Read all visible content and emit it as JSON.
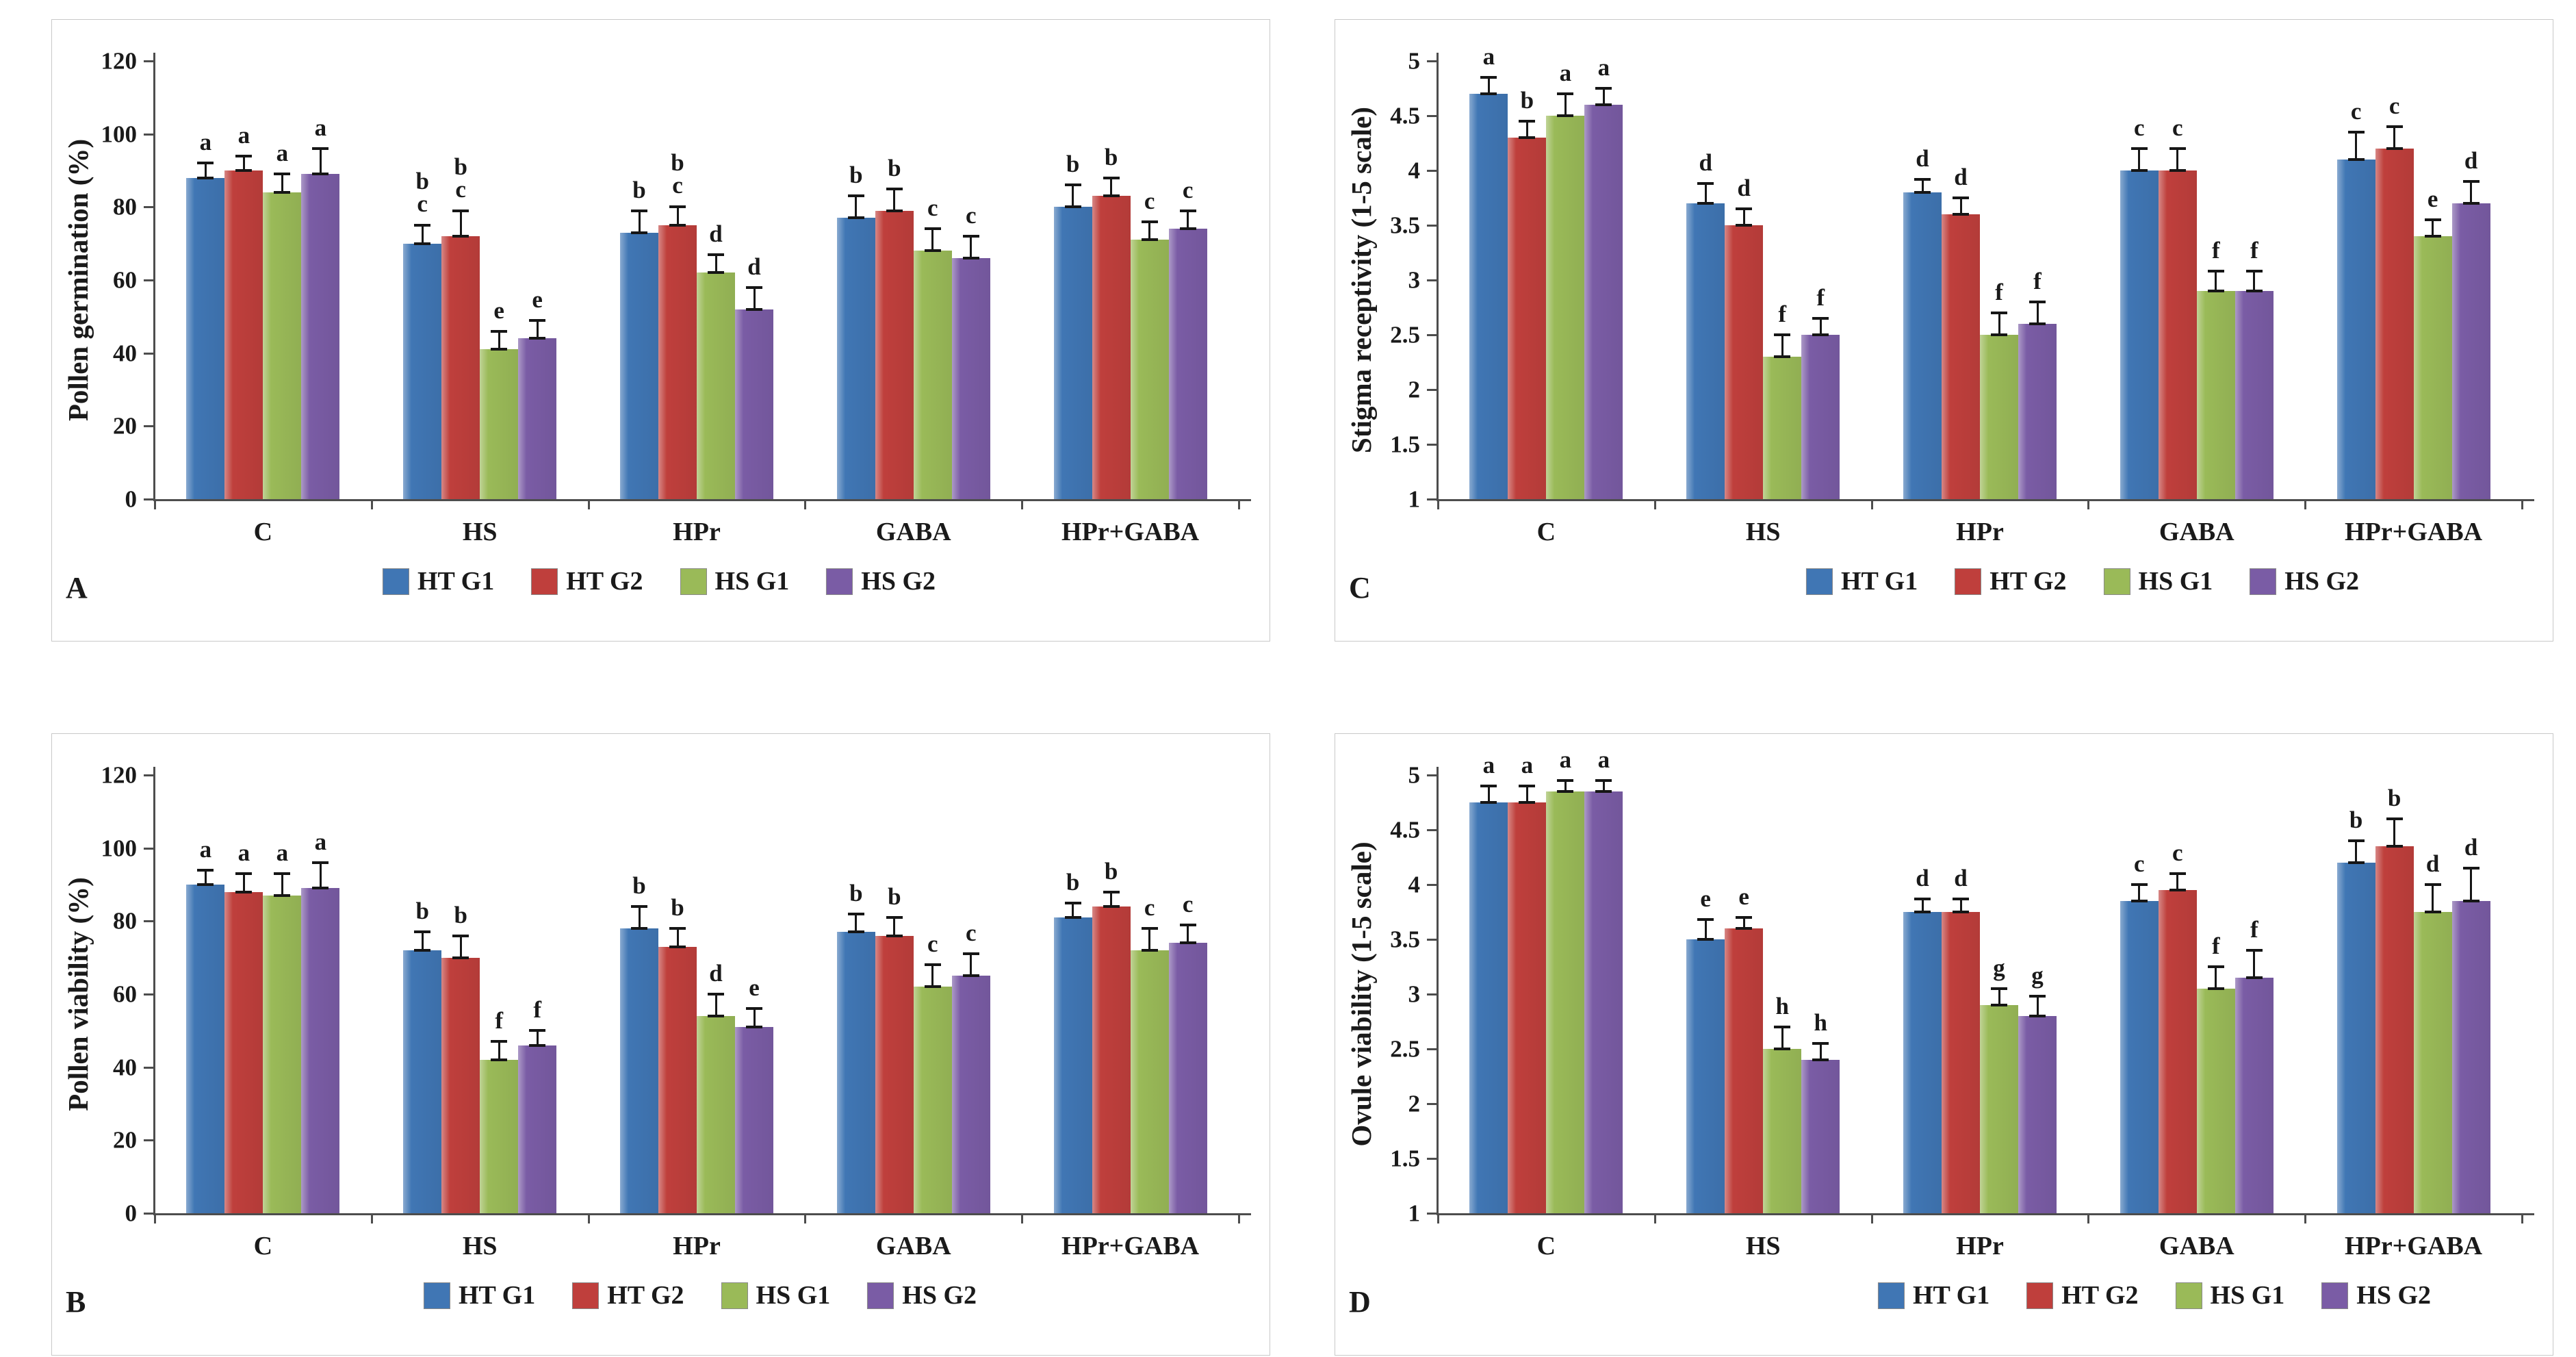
{
  "figure": {
    "background": "#ffffff",
    "series_colors": [
      "#4076B4",
      "#BF3F3C",
      "#9ABA58",
      "#7A5CA5"
    ],
    "legend_labels": [
      "HT G1",
      "HT G2",
      "HS G1",
      "HS G2"
    ],
    "categories": [
      "C",
      "HS",
      "HPr",
      "GABA",
      "HPr+GABA"
    ]
  },
  "chart_data": [
    {
      "type": "bar",
      "panel": "A",
      "ylabel": "Pollen germination (%)",
      "ylim": [
        0,
        120
      ],
      "yticks": [
        "0",
        "20",
        "40",
        "60",
        "80",
        "100",
        "120"
      ],
      "grid": false,
      "legend_position": "bottom",
      "categories": [
        "C",
        "HS",
        "HPr",
        "GABA",
        "HPr+GABA"
      ],
      "series": [
        {
          "name": "HT G1",
          "color": "#4076B4",
          "values": [
            88,
            70,
            73,
            77,
            80
          ],
          "errors": [
            4,
            5,
            6,
            6,
            6
          ],
          "letters": [
            "a",
            "bc",
            "b",
            "b",
            "b"
          ]
        },
        {
          "name": "HT G2",
          "color": "#BF3F3C",
          "values": [
            90,
            72,
            75,
            79,
            83
          ],
          "errors": [
            4,
            7,
            5,
            6,
            5
          ],
          "letters": [
            "a",
            "bc",
            "bc",
            "b",
            "b"
          ]
        },
        {
          "name": "HS G1",
          "color": "#9ABA58",
          "values": [
            84,
            41,
            62,
            68,
            71
          ],
          "errors": [
            5,
            5,
            5,
            6,
            5
          ],
          "letters": [
            "a",
            "e",
            "d",
            "c",
            "c"
          ]
        },
        {
          "name": "HS G2",
          "color": "#7A5CA5",
          "values": [
            89,
            44,
            52,
            66,
            74
          ],
          "errors": [
            7,
            5,
            6,
            6,
            5
          ],
          "letters": [
            "a",
            "e",
            "d",
            "c",
            "c"
          ]
        }
      ]
    },
    {
      "type": "bar",
      "panel": "C",
      "ylabel": "Stigma receptivity (1-5 scale)",
      "ylim": [
        1,
        5
      ],
      "yticks": [
        "1",
        "1.5",
        "2",
        "2.5",
        "3",
        "3.5",
        "4",
        "4.5",
        "5"
      ],
      "grid": false,
      "legend_position": "bottom",
      "categories": [
        "C",
        "HS",
        "HPr",
        "GABA",
        "HPr+GABA"
      ],
      "series": [
        {
          "name": "HT G1",
          "color": "#4076B4",
          "values": [
            4.7,
            3.7,
            3.8,
            4.0,
            4.1
          ],
          "errors": [
            0.15,
            0.18,
            0.12,
            0.2,
            0.25
          ],
          "letters": [
            "a",
            "d",
            "d",
            "c",
            "c"
          ]
        },
        {
          "name": "HT G2",
          "color": "#BF3F3C",
          "values": [
            4.3,
            3.5,
            3.6,
            4.0,
            4.2
          ],
          "errors": [
            0.15,
            0.15,
            0.15,
            0.2,
            0.2
          ],
          "letters": [
            "b",
            "d",
            "d",
            "c",
            "c"
          ]
        },
        {
          "name": "HS G1",
          "color": "#9ABA58",
          "values": [
            4.5,
            2.3,
            2.5,
            2.9,
            3.4
          ],
          "errors": [
            0.2,
            0.2,
            0.2,
            0.18,
            0.15
          ],
          "letters": [
            "a",
            "f",
            "f",
            "f",
            "e"
          ]
        },
        {
          "name": "HS G2",
          "color": "#7A5CA5",
          "values": [
            4.6,
            2.5,
            2.6,
            2.9,
            3.7
          ],
          "errors": [
            0.15,
            0.15,
            0.2,
            0.18,
            0.2
          ],
          "letters": [
            "a",
            "f",
            "f",
            "f",
            "d"
          ]
        }
      ]
    },
    {
      "type": "bar",
      "panel": "B",
      "ylabel": "Pollen viability (%)",
      "ylim": [
        0,
        120
      ],
      "yticks": [
        "0",
        "20",
        "40",
        "60",
        "80",
        "100",
        "120"
      ],
      "grid": false,
      "legend_position": "bottom",
      "categories": [
        "C",
        "HS",
        "HPr",
        "GABA",
        "HPr+GABA"
      ],
      "series": [
        {
          "name": "HT G1",
          "color": "#4076B4",
          "values": [
            90,
            72,
            78,
            77,
            81
          ],
          "errors": [
            4,
            5,
            6,
            5,
            4
          ],
          "letters": [
            "a",
            "b",
            "b",
            "b",
            "b"
          ]
        },
        {
          "name": "HT G2",
          "color": "#BF3F3C",
          "values": [
            88,
            70,
            73,
            76,
            84
          ],
          "errors": [
            5,
            6,
            5,
            5,
            4
          ],
          "letters": [
            "a",
            "b",
            "b",
            "b",
            "b"
          ]
        },
        {
          "name": "HS G1",
          "color": "#9ABA58",
          "values": [
            87,
            42,
            54,
            62,
            72
          ],
          "errors": [
            6,
            5,
            6,
            6,
            6
          ],
          "letters": [
            "a",
            "f",
            "d",
            "c",
            "c"
          ]
        },
        {
          "name": "HS G2",
          "color": "#7A5CA5",
          "values": [
            89,
            46,
            51,
            65,
            74
          ],
          "errors": [
            7,
            4,
            5,
            6,
            5
          ],
          "letters": [
            "a",
            "f",
            "e",
            "c",
            "c"
          ]
        }
      ]
    },
    {
      "type": "bar",
      "panel": "D",
      "ylabel": "Ovule viability (1-5 scale)",
      "ylim": [
        1,
        5
      ],
      "yticks": [
        "1",
        "1.5",
        "2",
        "2.5",
        "3",
        "3.5",
        "4",
        "4.5",
        "5"
      ],
      "grid": false,
      "legend_position": "bottom",
      "categories": [
        "C",
        "HS",
        "HPr",
        "GABA",
        "HPr+GABA"
      ],
      "series": [
        {
          "name": "HT G1",
          "color": "#4076B4",
          "values": [
            4.75,
            3.5,
            3.75,
            3.85,
            4.2
          ],
          "errors": [
            0.15,
            0.18,
            0.12,
            0.15,
            0.2
          ],
          "letters": [
            "a",
            "e",
            "d",
            "c",
            "b"
          ]
        },
        {
          "name": "HT G2",
          "color": "#BF3F3C",
          "values": [
            4.75,
            3.6,
            3.75,
            3.95,
            4.35
          ],
          "errors": [
            0.15,
            0.1,
            0.12,
            0.15,
            0.25
          ],
          "letters": [
            "a",
            "e",
            "d",
            "c",
            "b"
          ]
        },
        {
          "name": "HS G1",
          "color": "#9ABA58",
          "values": [
            4.85,
            2.5,
            2.9,
            3.05,
            3.75
          ],
          "errors": [
            0.1,
            0.2,
            0.15,
            0.2,
            0.25
          ],
          "letters": [
            "a",
            "h",
            "g",
            "f",
            "d"
          ]
        },
        {
          "name": "HS G2",
          "color": "#7A5CA5",
          "values": [
            4.85,
            2.4,
            2.8,
            3.15,
            3.85
          ],
          "errors": [
            0.1,
            0.15,
            0.18,
            0.25,
            0.3
          ],
          "letters": [
            "a",
            "h",
            "g",
            "f",
            "d"
          ]
        }
      ]
    }
  ]
}
